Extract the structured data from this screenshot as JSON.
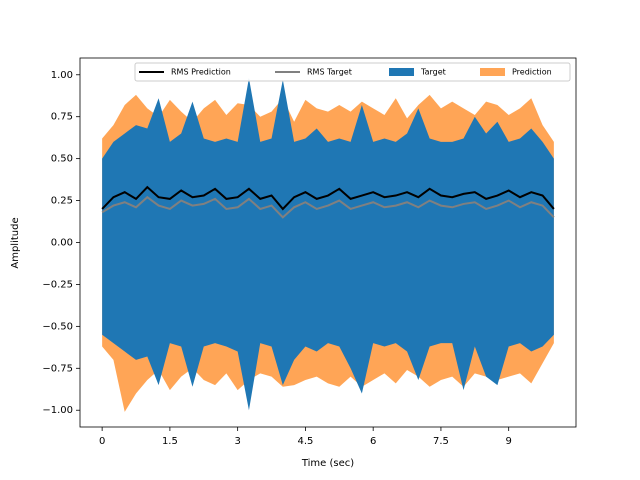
{
  "chart_data": {
    "type": "waveform",
    "xlabel": "Time (sec)",
    "ylabel": "Amplitude",
    "xlim": [
      -0.49,
      10.49
    ],
    "xticks": [
      0,
      1.5,
      3,
      4.5,
      6,
      7.5,
      9
    ],
    "ylim": [
      -1.1,
      1.1
    ],
    "yticks": [
      {
        "value": -1,
        "label": "−1.00"
      },
      {
        "value": -0.75,
        "label": "−0.75"
      },
      {
        "value": -0.5,
        "label": "−0.50"
      },
      {
        "value": -0.25,
        "label": "−0.25"
      },
      {
        "value": 0,
        "label": "0.00"
      },
      {
        "value": 0.25,
        "label": "0.25"
      },
      {
        "value": 0.5,
        "label": "0.50"
      },
      {
        "value": 0.75,
        "label": "0.75"
      },
      {
        "value": 1,
        "label": "1.00"
      }
    ],
    "legend": "upper right",
    "x": [
      0,
      0.25,
      0.5,
      0.75,
      1,
      1.25,
      1.5,
      1.75,
      2,
      2.25,
      2.5,
      2.75,
      3,
      3.25,
      3.5,
      3.75,
      4,
      4.25,
      4.5,
      4.75,
      5,
      5.25,
      5.5,
      5.75,
      6,
      6.25,
      6.5,
      6.75,
      7,
      7.25,
      7.5,
      7.75,
      8,
      8.25,
      8.5,
      8.75,
      9,
      9.25,
      9.5,
      9.75,
      10
    ],
    "series": [
      {
        "name": "RMS Prediction",
        "kind": "line",
        "color": "#000000",
        "values": [
          0.2,
          0.27,
          0.3,
          0.26,
          0.33,
          0.27,
          0.26,
          0.31,
          0.27,
          0.28,
          0.32,
          0.26,
          0.27,
          0.32,
          0.26,
          0.28,
          0.2,
          0.27,
          0.3,
          0.26,
          0.28,
          0.32,
          0.26,
          0.28,
          0.3,
          0.27,
          0.28,
          0.3,
          0.27,
          0.32,
          0.28,
          0.27,
          0.29,
          0.3,
          0.26,
          0.28,
          0.31,
          0.27,
          0.3,
          0.28,
          0.2
        ]
      },
      {
        "name": "RMS Target",
        "kind": "line",
        "color": "#808080",
        "values": [
          0.18,
          0.22,
          0.24,
          0.21,
          0.27,
          0.22,
          0.2,
          0.25,
          0.22,
          0.23,
          0.26,
          0.2,
          0.21,
          0.26,
          0.2,
          0.22,
          0.15,
          0.21,
          0.24,
          0.2,
          0.22,
          0.25,
          0.2,
          0.22,
          0.24,
          0.21,
          0.22,
          0.24,
          0.21,
          0.25,
          0.22,
          0.21,
          0.23,
          0.24,
          0.2,
          0.22,
          0.25,
          0.21,
          0.24,
          0.22,
          0.15
        ]
      },
      {
        "name": "Target",
        "kind": "band",
        "color": "#1f77b4",
        "alpha": 1,
        "upper": [
          0.5,
          0.6,
          0.65,
          0.7,
          0.68,
          0.86,
          0.6,
          0.65,
          0.84,
          0.62,
          0.6,
          0.62,
          0.6,
          0.98,
          0.6,
          0.62,
          0.97,
          0.6,
          0.62,
          0.68,
          0.6,
          0.62,
          0.6,
          0.82,
          0.6,
          0.62,
          0.6,
          0.65,
          0.8,
          0.62,
          0.6,
          0.6,
          0.62,
          0.75,
          0.65,
          0.72,
          0.6,
          0.62,
          0.68,
          0.6,
          0.5
        ],
        "lower": [
          -0.55,
          -0.6,
          -0.65,
          -0.7,
          -0.68,
          -0.85,
          -0.6,
          -0.62,
          -0.86,
          -0.62,
          -0.6,
          -0.62,
          -0.65,
          -1.0,
          -0.6,
          -0.62,
          -0.85,
          -0.7,
          -0.62,
          -0.65,
          -0.6,
          -0.62,
          -0.75,
          -0.9,
          -0.6,
          -0.62,
          -0.6,
          -0.65,
          -0.82,
          -0.62,
          -0.6,
          -0.6,
          -0.88,
          -0.62,
          -0.8,
          -0.85,
          -0.62,
          -0.6,
          -0.65,
          -0.62,
          -0.55
        ]
      },
      {
        "name": "Prediction",
        "kind": "band",
        "color": "#ff7f0e",
        "alpha": 0.7,
        "upper": [
          0.62,
          0.7,
          0.82,
          0.88,
          0.8,
          0.75,
          0.85,
          0.78,
          0.72,
          0.8,
          0.85,
          0.76,
          0.83,
          0.82,
          0.75,
          0.78,
          0.86,
          0.72,
          0.85,
          0.8,
          0.78,
          0.82,
          0.78,
          0.84,
          0.8,
          0.76,
          0.86,
          0.74,
          0.82,
          0.88,
          0.8,
          0.84,
          0.8,
          0.76,
          0.84,
          0.82,
          0.76,
          0.8,
          0.86,
          0.7,
          0.6
        ],
        "lower": [
          -0.62,
          -0.7,
          -1.01,
          -0.9,
          -0.82,
          -0.76,
          -0.88,
          -0.8,
          -0.75,
          -0.82,
          -0.85,
          -0.78,
          -0.88,
          -0.82,
          -0.78,
          -0.8,
          -0.86,
          -0.85,
          -0.82,
          -0.8,
          -0.84,
          -0.86,
          -0.8,
          -0.86,
          -0.82,
          -0.78,
          -0.84,
          -0.76,
          -0.8,
          -0.86,
          -0.82,
          -0.8,
          -0.86,
          -0.78,
          -0.8,
          -0.82,
          -0.8,
          -0.78,
          -0.84,
          -0.72,
          -0.6
        ]
      }
    ]
  }
}
